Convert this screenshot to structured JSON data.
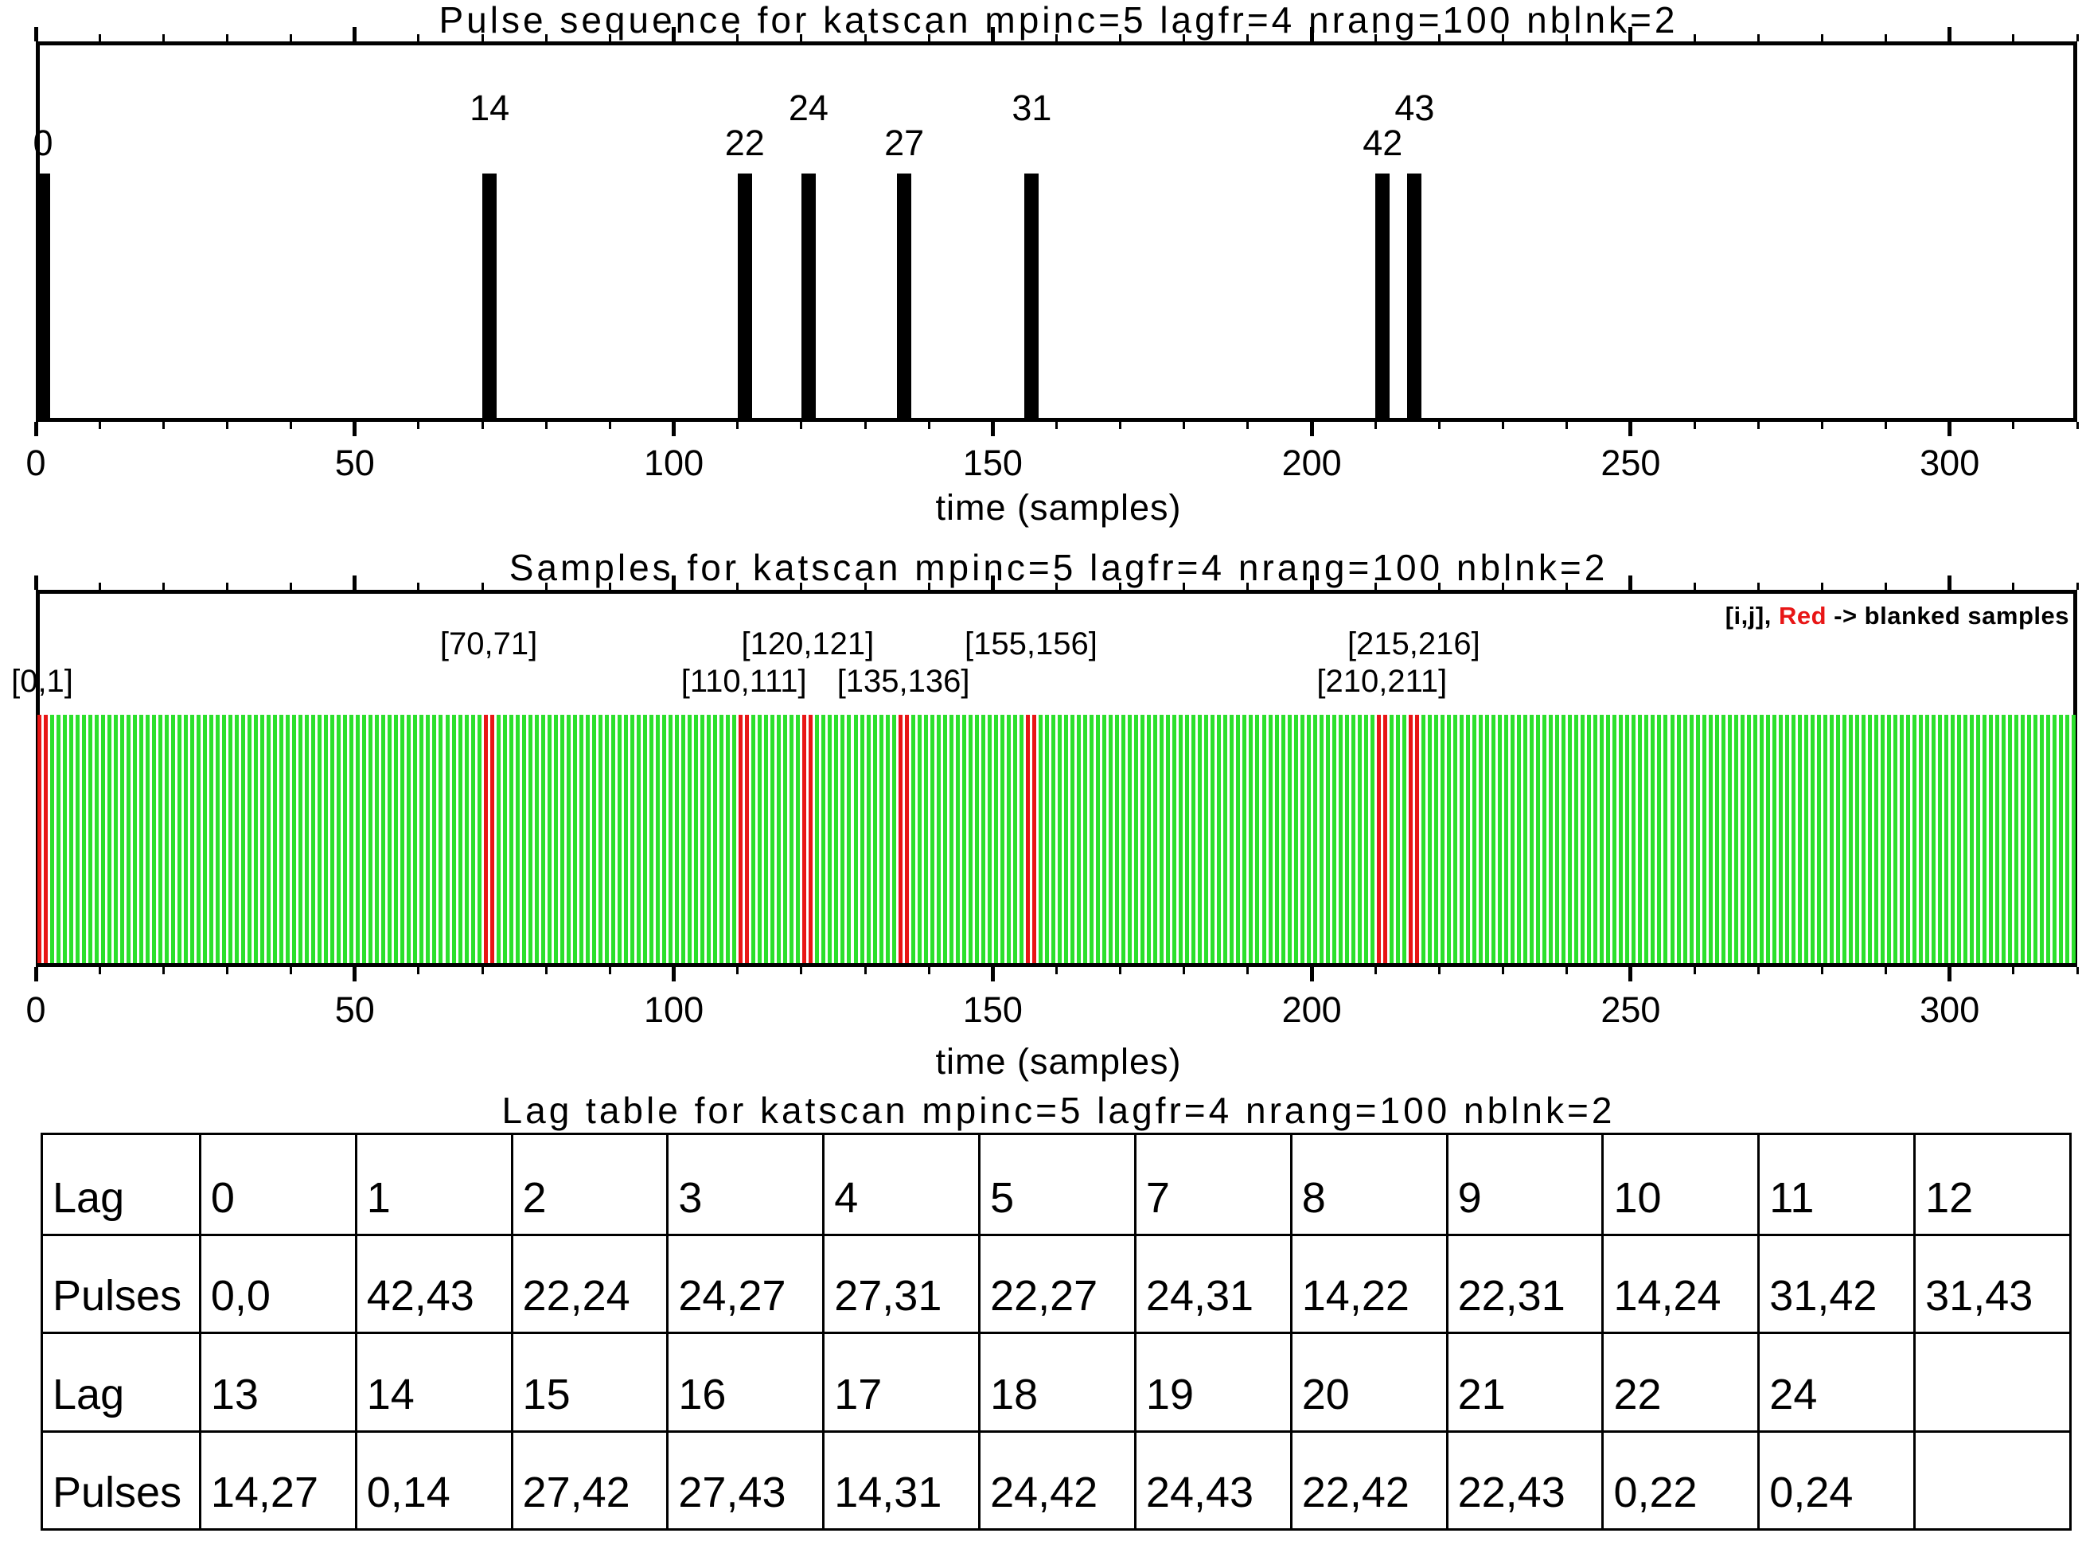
{
  "page": {
    "background": "#ffffff"
  },
  "colors": {
    "sample_green": "#2ce02c",
    "blanked_red": "#e81616",
    "ink_black": "#000000"
  },
  "legend": {
    "prefix": "[i,j], ",
    "red_word": "Red",
    "suffix": " -> blanked samples"
  },
  "chart_data": [
    {
      "type": "bar",
      "name": "pulse-sequence-plot",
      "title": "Pulse sequence for katscan mpinc=5 lagfr=4 nrang=100 nblnk=2",
      "xlabel": "time (samples)",
      "xlim": [
        0,
        320
      ],
      "xticks": [
        0,
        50,
        100,
        150,
        200,
        250,
        300
      ],
      "minor_tick_step": 10,
      "grid": false,
      "mpinc": 5,
      "pulses": [
        0,
        14,
        22,
        24,
        27,
        31,
        42,
        43
      ],
      "pulse_sample_times": [
        0,
        70,
        110,
        120,
        135,
        155,
        210,
        215
      ],
      "label_rows": [
        "lower",
        "upper",
        "lower",
        "upper",
        "lower",
        "upper",
        "lower",
        "upper"
      ]
    },
    {
      "type": "bar",
      "name": "samples-plot",
      "title": "Samples for katscan mpinc=5 lagfr=4 nrang=100 nblnk=2",
      "xlabel": "time (samples)",
      "xlim": [
        0,
        320
      ],
      "xticks": [
        0,
        50,
        100,
        150,
        200,
        250,
        300
      ],
      "minor_tick_step": 10,
      "grid": false,
      "samples_total": 320,
      "blanked_pairs": [
        [
          0,
          1
        ],
        [
          70,
          71
        ],
        [
          110,
          111
        ],
        [
          120,
          121
        ],
        [
          135,
          136
        ],
        [
          155,
          156
        ],
        [
          210,
          211
        ],
        [
          215,
          216
        ]
      ],
      "pair_label_rows": [
        "lower",
        "upper",
        "lower",
        "upper",
        "lower",
        "upper",
        "lower",
        "upper"
      ],
      "legend_note": "[i,j], Red -> blanked samples"
    },
    {
      "type": "table",
      "name": "lag-table",
      "title": "Lag table for katscan mpinc=5 lagfr=4 nrang=100 nblnk=2",
      "rows": [
        {
          "header": "Lag",
          "cells": [
            "0",
            "1",
            "2",
            "3",
            "4",
            "5",
            "7",
            "8",
            "9",
            "10",
            "11",
            "12"
          ]
        },
        {
          "header": "Pulses",
          "cells": [
            "0,0",
            "42,43",
            "22,24",
            "24,27",
            "27,31",
            "22,27",
            "24,31",
            "14,22",
            "22,31",
            "14,24",
            "31,42",
            "31,43"
          ]
        },
        {
          "header": "Lag",
          "cells": [
            "13",
            "14",
            "15",
            "16",
            "17",
            "18",
            "19",
            "20",
            "21",
            "22",
            "24",
            ""
          ]
        },
        {
          "header": "Pulses",
          "cells": [
            "14,27",
            "0,14",
            "27,42",
            "27,43",
            "14,31",
            "24,42",
            "24,43",
            "22,42",
            "22,43",
            "0,22",
            "0,24",
            ""
          ]
        }
      ]
    }
  ]
}
